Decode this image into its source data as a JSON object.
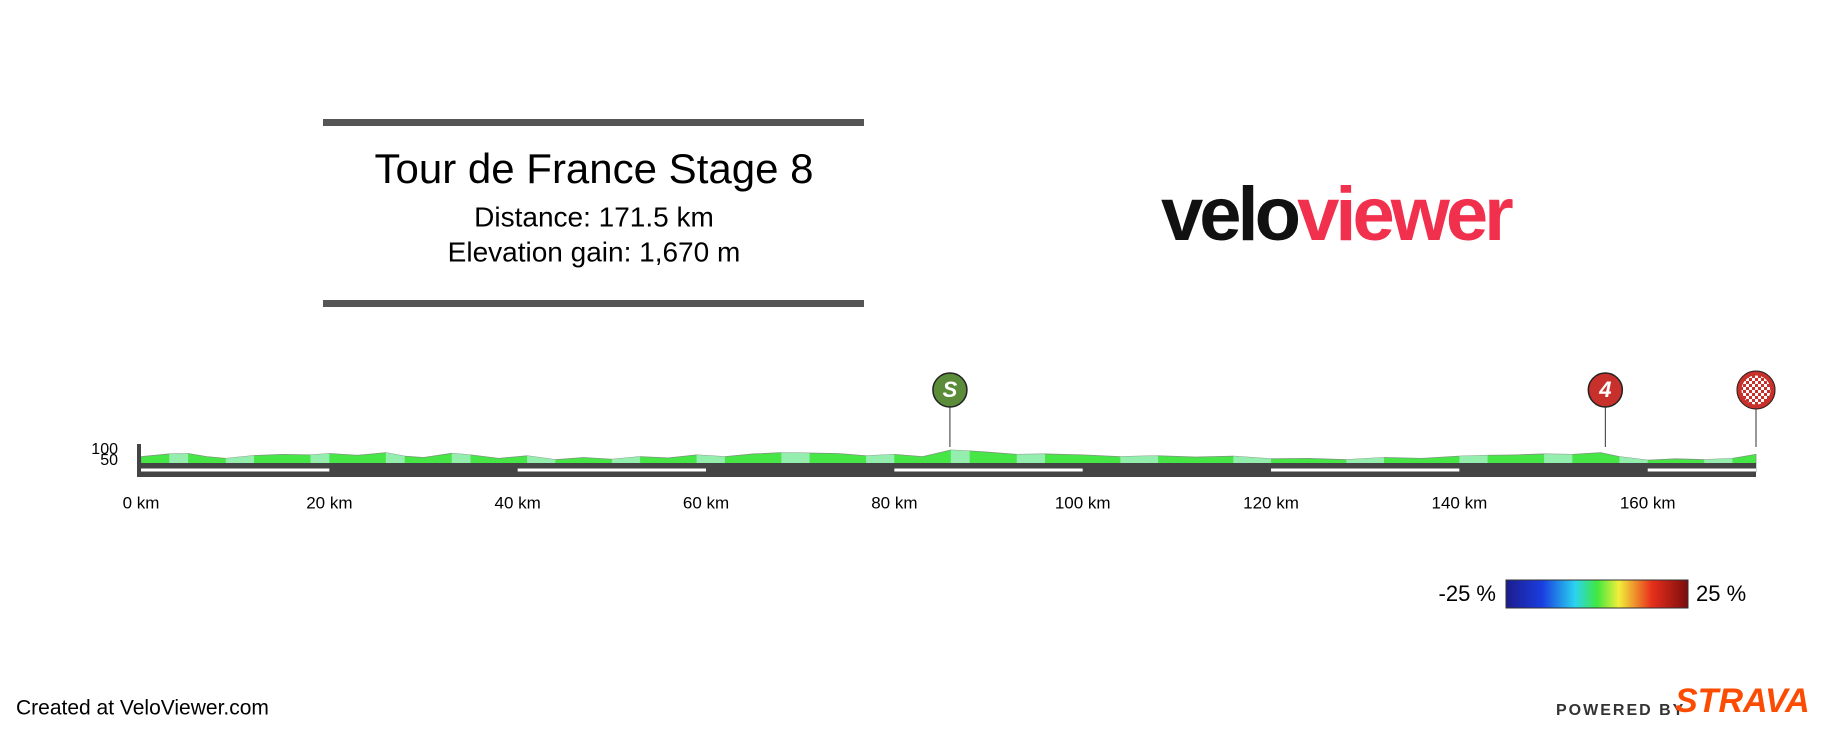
{
  "chart_data": {
    "type": "area",
    "title": "Tour de France Stage 8",
    "subtitle": [
      "Distance: 171.5 km",
      "Elevation gain: 1,670 m"
    ],
    "brand": [
      "velo",
      "viewer"
    ],
    "footer": "Created at VeloViewer.com",
    "powered_by": [
      "POWERED BY",
      "STRAVA"
    ],
    "x": [
      0,
      3,
      5,
      7,
      9,
      12,
      15,
      18,
      20,
      23,
      26,
      28,
      30,
      33,
      35,
      38,
      41,
      44,
      47,
      50,
      53,
      56,
      59,
      62,
      65,
      68,
      71,
      74,
      77,
      80,
      83,
      86,
      88,
      90,
      93,
      96,
      100,
      104,
      108,
      112,
      116,
      120,
      124,
      128,
      132,
      136,
      140,
      143,
      146,
      149,
      152,
      155,
      157,
      160,
      163,
      166,
      169,
      171.5
    ],
    "series": [
      {
        "color": "#47e647",
        "values": [
          70,
          82,
          84,
          70,
          62,
          75,
          80,
          78,
          84,
          76,
          88,
          72,
          66,
          85,
          78,
          62,
          74,
          56,
          66,
          58,
          70,
          64,
          78,
          70,
          82,
          88,
          86,
          84,
          74,
          80,
          70,
          100,
          96,
          90,
          80,
          82,
          78,
          70,
          74,
          68,
          72,
          60,
          62,
          56,
          66,
          62,
          72,
          76,
          78,
          82,
          80,
          88,
          70,
          54,
          60,
          56,
          62,
          80
        ]
      }
    ],
    "xlim": [
      0,
      171.5
    ],
    "ylim": [
      0,
      100
    ],
    "xticks": [
      {
        "value": 0,
        "label": "0 km"
      },
      {
        "value": 20,
        "label": "20 km"
      },
      {
        "value": 40,
        "label": "40 km"
      },
      {
        "value": 60,
        "label": "60 km"
      },
      {
        "value": 80,
        "label": "80 km"
      },
      {
        "value": 100,
        "label": "100 km"
      },
      {
        "value": 120,
        "label": "120 km"
      },
      {
        "value": 140,
        "label": "140 km"
      },
      {
        "value": 160,
        "label": "160 km"
      }
    ],
    "yticks": [
      100,
      50
    ],
    "markers": [
      {
        "km": 85.9,
        "label": "S",
        "color": "#5b8c3a"
      },
      {
        "km": 155.5,
        "label": "4",
        "color": "#c8302b"
      },
      {
        "km": 171.5,
        "kind": "finish",
        "color": "#c8302b"
      }
    ],
    "colorscale": [
      {
        "value": -25,
        "label": "-25 %"
      },
      {
        "value": 25,
        "label": "25 %"
      }
    ]
  }
}
